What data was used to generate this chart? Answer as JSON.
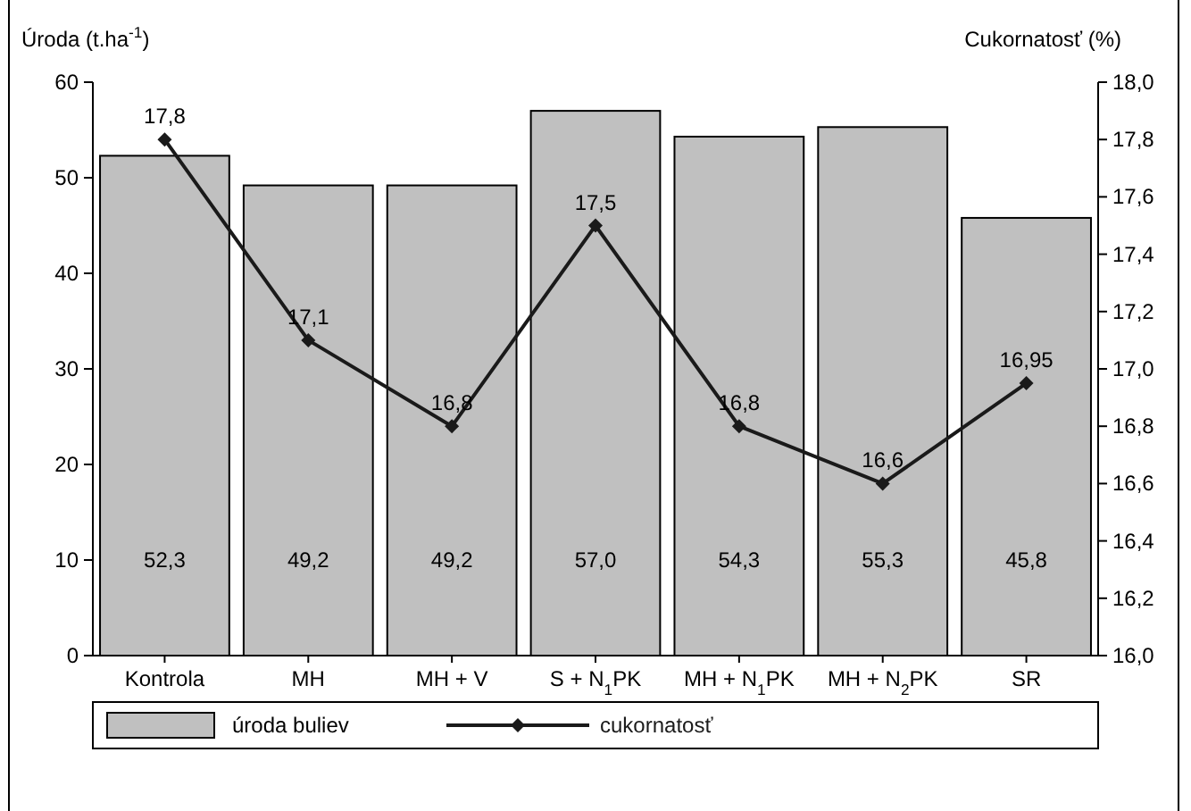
{
  "chart_data": {
    "type": "bar",
    "ylabel": "Úroda (t.ha$^{-1}$)",
    "y2label": "Cukornatosť (%)",
    "categories": [
      "Kontrola",
      "MH",
      "MH + V",
      "S + N$_{1}$PK",
      "MH + N$_{1}$PK",
      "MH + N$_{2}$PK",
      "SR"
    ],
    "series": [
      {
        "name": "úroda buliev",
        "color": "#c0c0c0",
        "values": [
          52.3,
          49.2,
          49.2,
          57.0,
          54.3,
          55.3,
          45.8
        ],
        "value_labels": [
          "52,3",
          "49,2",
          "49,2",
          "57,0",
          "54,3",
          "55,3",
          "45,8"
        ]
      },
      {
        "name": "cukornatosť",
        "type": "line",
        "axis": "y2",
        "color": "#1a1a1a",
        "marker": "diamond",
        "values": [
          17.8,
          17.1,
          16.8,
          17.5,
          16.8,
          16.6,
          16.95
        ],
        "value_labels": [
          "17,8",
          "17,1",
          "16,8",
          "17,5",
          "16,8",
          "16,6",
          "16,95"
        ]
      }
    ],
    "ylim": [
      0,
      60
    ],
    "yticks": [
      0,
      10,
      20,
      30,
      40,
      50,
      60
    ],
    "y2lim": [
      16.0,
      18.0
    ],
    "y2ticks": [
      {
        "value": 16.0,
        "label": "16,0"
      },
      {
        "value": 16.2,
        "label": "16,2"
      },
      {
        "value": 16.4,
        "label": "16,4"
      },
      {
        "value": 16.6,
        "label": "16,6"
      },
      {
        "value": 16.8,
        "label": "16,8"
      },
      {
        "value": 17.0,
        "label": "17,0"
      },
      {
        "value": 17.2,
        "label": "17,2"
      },
      {
        "value": 17.4,
        "label": "17,4"
      },
      {
        "value": 17.6,
        "label": "17,6"
      },
      {
        "value": 17.8,
        "label": "17,8"
      },
      {
        "value": 18.0,
        "label": "18,0"
      }
    ],
    "grid": false,
    "legend": "bottom"
  }
}
